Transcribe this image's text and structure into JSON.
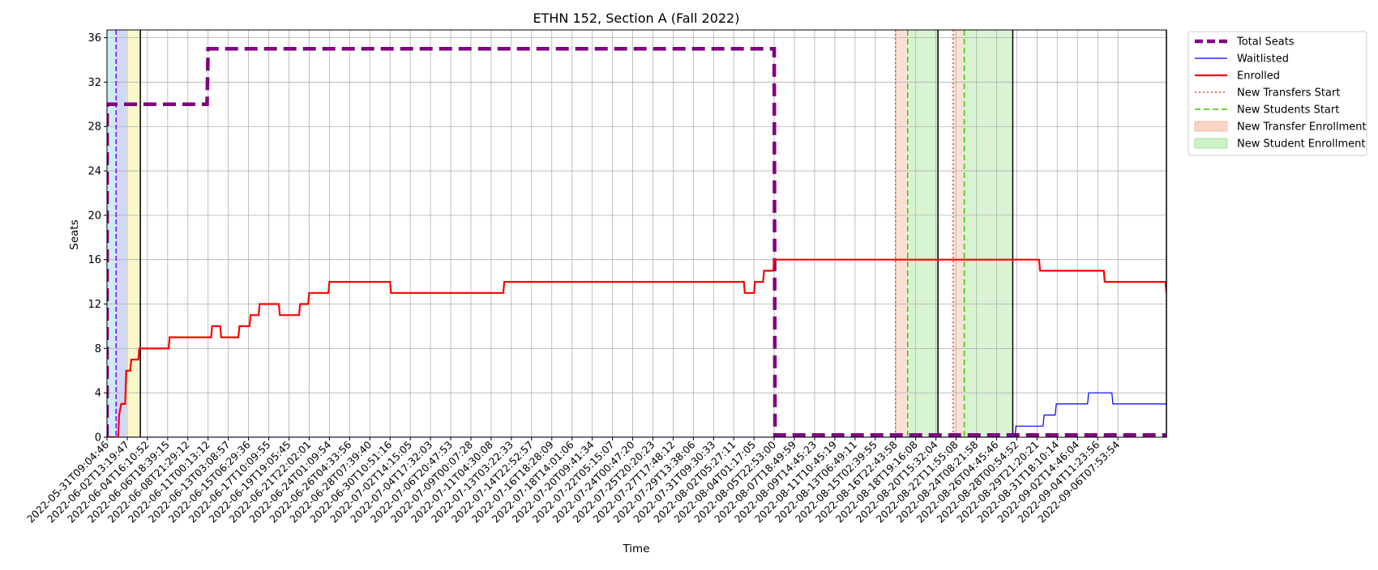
{
  "chart_data": {
    "type": "line",
    "title": "ETHN 152, Section A (Fall 2022)",
    "xlabel": "Time",
    "ylabel": "Seats",
    "ylim": [
      0,
      36.7
    ],
    "yticks": [
      0,
      4,
      8,
      12,
      16,
      20,
      24,
      28,
      32,
      36
    ],
    "x_tick_labels": [
      "2022-05-31T09:04:46",
      "2022-06-02T13:19:47",
      "2022-06-04T16:10:52",
      "2022-06-06T18:39:15",
      "2022-06-08T21:29:12",
      "2022-06-11T00:13:12",
      "2022-06-13T03:08:57",
      "2022-06-15T06:29:36",
      "2022-06-17T10:09:55",
      "2022-06-19T19:05:45",
      "2022-06-21T22:02:01",
      "2022-06-24T01:09:54",
      "2022-06-26T04:33:56",
      "2022-06-28T07:39:40",
      "2022-06-30T10:51:16",
      "2022-07-02T14:15:05",
      "2022-07-04T17:32:03",
      "2022-07-06T20:47:53",
      "2022-07-09T00:07:28",
      "2022-07-11T04:30:08",
      "2022-07-13T03:22:33",
      "2022-07-14T22:52:57",
      "2022-07-16T18:28:09",
      "2022-07-18T14:01:06",
      "2022-07-20T09:41:34",
      "2022-07-22T05:15:07",
      "2022-07-24T00:47:20",
      "2022-07-25T20:20:23",
      "2022-07-27T17:48:12",
      "2022-07-29T13:38:06",
      "2022-07-31T09:30:33",
      "2022-08-02T05:27:11",
      "2022-08-04T01:17:05",
      "2022-08-05T22:53:00",
      "2022-08-07T18:49:59",
      "2022-08-09T14:45:23",
      "2022-08-11T10:45:19",
      "2022-08-13T06:49:11",
      "2022-08-15T02:39:55",
      "2022-08-16T22:43:58",
      "2022-08-18T19:16:08",
      "2022-08-20T15:32:04",
      "2022-08-22T11:55:08",
      "2022-08-24T08:21:58",
      "2022-08-26T04:45:46",
      "2022-08-28T00:54:52",
      "2022-08-29T21:20:21",
      "2022-08-31T18:10:14",
      "2022-09-02T14:46:04",
      "2022-09-04T11:23:56",
      "2022-09-06T07:53:54"
    ],
    "x_range": [
      0,
      52.4
    ],
    "grid": true,
    "legend_position": "outside-top-right",
    "series": [
      {
        "name": "Total Seats",
        "color": "#800080",
        "style": "dashed",
        "width": 4.5,
        "points": [
          [
            0,
            0
          ],
          [
            0.01,
            30
          ],
          [
            4.95,
            30
          ],
          [
            5.0,
            35
          ],
          [
            33.0,
            35
          ],
          [
            33.04,
            0.2
          ],
          [
            52.4,
            0.2
          ]
        ]
      },
      {
        "name": "Waitlisted",
        "color": "#0000ff",
        "style": "solid",
        "width": 1.2,
        "points": [
          [
            0,
            0
          ],
          [
            44.9,
            0
          ],
          [
            44.95,
            1
          ],
          [
            46.3,
            1
          ],
          [
            46.35,
            2
          ],
          [
            46.9,
            2
          ],
          [
            46.95,
            3
          ],
          [
            48.5,
            3
          ],
          [
            48.55,
            4
          ],
          [
            49.7,
            4
          ],
          [
            49.75,
            3
          ],
          [
            52.4,
            3
          ]
        ]
      },
      {
        "name": "Enrolled",
        "color": "#ff0000",
        "style": "solid",
        "width": 2.2,
        "points": [
          [
            0,
            0
          ],
          [
            0.55,
            0
          ],
          [
            0.6,
            2
          ],
          [
            0.7,
            3
          ],
          [
            0.9,
            3
          ],
          [
            0.95,
            6
          ],
          [
            1.15,
            6
          ],
          [
            1.2,
            7
          ],
          [
            1.55,
            7
          ],
          [
            1.6,
            8
          ],
          [
            3.05,
            8
          ],
          [
            3.1,
            9
          ],
          [
            5.15,
            9
          ],
          [
            5.2,
            10
          ],
          [
            5.6,
            10
          ],
          [
            5.65,
            9
          ],
          [
            6.5,
            9
          ],
          [
            6.55,
            10
          ],
          [
            7.05,
            10
          ],
          [
            7.1,
            11
          ],
          [
            7.5,
            11
          ],
          [
            7.55,
            12
          ],
          [
            8.5,
            12
          ],
          [
            8.55,
            11
          ],
          [
            9.5,
            11
          ],
          [
            9.55,
            12
          ],
          [
            9.95,
            12
          ],
          [
            10.0,
            13
          ],
          [
            10.95,
            13
          ],
          [
            11.0,
            14
          ],
          [
            14.0,
            14
          ],
          [
            14.05,
            13
          ],
          [
            19.6,
            13
          ],
          [
            19.65,
            14
          ],
          [
            31.5,
            14
          ],
          [
            31.55,
            13
          ],
          [
            32.0,
            13
          ],
          [
            32.05,
            14
          ],
          [
            32.45,
            14
          ],
          [
            32.5,
            15
          ],
          [
            32.95,
            15
          ],
          [
            33.0,
            16
          ],
          [
            46.1,
            16
          ],
          [
            46.15,
            15
          ],
          [
            49.3,
            15
          ],
          [
            49.35,
            14
          ],
          [
            52.35,
            14
          ],
          [
            52.4,
            13
          ]
        ]
      }
    ],
    "markers": [
      {
        "name": "New Transfers Start",
        "color": "#ff4500",
        "style": "dotted",
        "x": [
          39.0,
          41.85
        ]
      },
      {
        "name": "New Students Start",
        "color": "#33cc00",
        "style": "dashed",
        "x": [
          39.6,
          42.4
        ]
      }
    ],
    "shaded_regions": [
      {
        "name": "New Transfer Enrollment",
        "color": "#f4a582",
        "ranges": [
          [
            39.0,
            39.6
          ],
          [
            41.85,
            42.4
          ]
        ]
      },
      {
        "name": "New Student Enrollment",
        "color": "#90e080",
        "ranges": [
          [
            39.6,
            41.1
          ],
          [
            42.4,
            44.8
          ]
        ]
      }
    ],
    "early_bands": [
      {
        "color": "#a6dcef",
        "from": 0.0,
        "to": 0.45
      },
      {
        "color": "#a6b8f0",
        "from": 0.45,
        "to": 0.95
      },
      {
        "color": "#f5f0a0",
        "from": 0.95,
        "to": 1.65
      }
    ],
    "black_vlines": [
      1.65,
      41.1,
      44.8,
      52.4
    ],
    "purple_vline": 0.45,
    "legend": [
      {
        "label": "Total Seats",
        "kind": "line",
        "color": "#800080",
        "style": "dashed",
        "width": 4.5
      },
      {
        "label": "Waitlisted",
        "kind": "line",
        "color": "#0000ff",
        "style": "solid",
        "width": 1.2
      },
      {
        "label": "Enrolled",
        "kind": "line",
        "color": "#ff0000",
        "style": "solid",
        "width": 2.2
      },
      {
        "label": "New Transfers Start",
        "kind": "line",
        "color": "#ff4500",
        "style": "dotted",
        "width": 1.5
      },
      {
        "label": "New Students Start",
        "kind": "line",
        "color": "#33cc00",
        "style": "dashed",
        "width": 1.5
      },
      {
        "label": "New Transfer Enrollment",
        "kind": "patch",
        "color": "#f4a582"
      },
      {
        "label": "New Student Enrollment",
        "kind": "patch",
        "color": "#90e080"
      }
    ]
  }
}
